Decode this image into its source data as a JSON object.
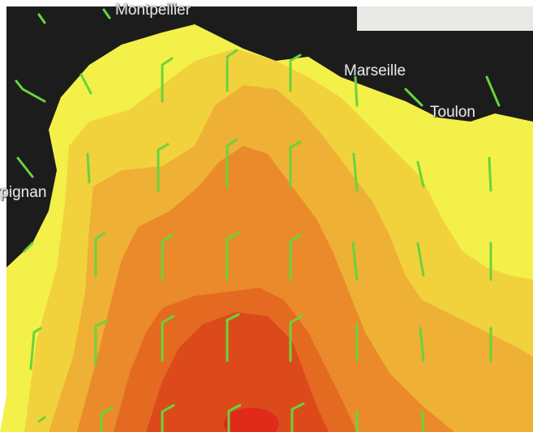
{
  "map": {
    "cities": {
      "montpellier": "Montpellier",
      "marseille": "Marseille",
      "toulon": "Toulon",
      "perpignan": "rpignan"
    },
    "colors": {
      "land": "#1c1c1c",
      "band_light_yellow": "#f4f04a",
      "band_yellow": "#f2d23c",
      "band_light_orange": "#eeb035",
      "band_orange": "#ea8a2a",
      "band_dark_orange": "#e46a22",
      "band_red": "#dc4a1c",
      "wind_barbs": "#6ad33c"
    },
    "icons": [
      "wind-barb-icon"
    ]
  }
}
